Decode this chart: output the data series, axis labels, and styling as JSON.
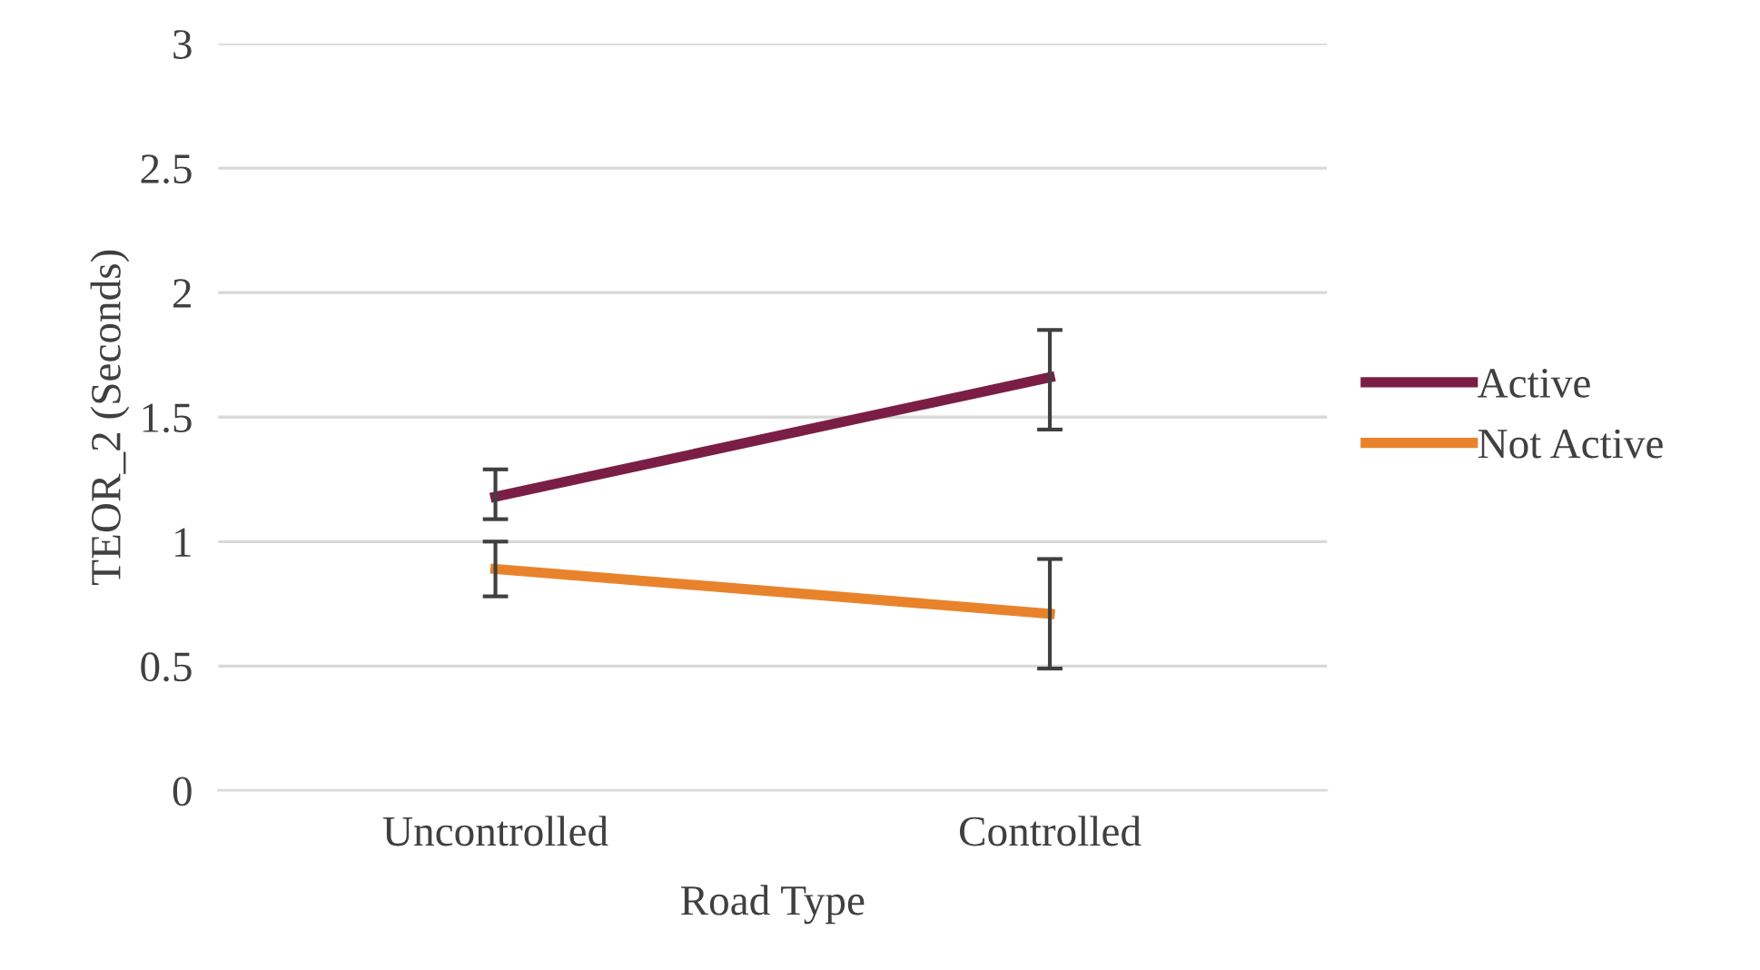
{
  "chart_data": {
    "type": "line",
    "xlabel": "Road Type",
    "ylabel": "TEOR_2 (Seconds)",
    "categories": [
      "Uncontrolled",
      "Controlled"
    ],
    "series": [
      {
        "name": "Active",
        "color": "#7b1e45",
        "values": [
          1.18,
          1.66
        ],
        "errors": [
          [
            1.09,
            1.29
          ],
          [
            1.45,
            1.85
          ]
        ]
      },
      {
        "name": "Not Active",
        "color": "#e9832b",
        "values": [
          0.89,
          0.71
        ],
        "errors": [
          [
            0.78,
            1.0
          ],
          [
            0.49,
            0.93
          ]
        ]
      }
    ],
    "ylim": [
      0,
      3
    ],
    "yticks": [
      0,
      0.5,
      1,
      1.5,
      2,
      2.5,
      3
    ],
    "grid": "y",
    "legend": "right",
    "marker": "none",
    "line_style": "solid"
  }
}
